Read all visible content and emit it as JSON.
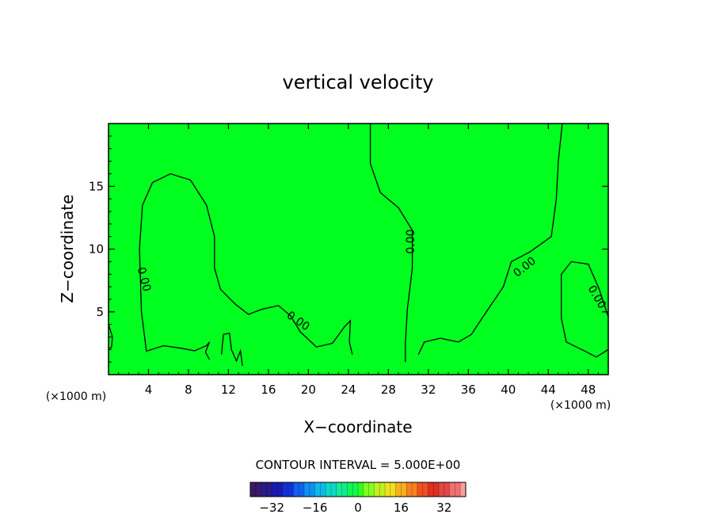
{
  "chart_data": {
    "type": "contour",
    "title": "vertical velocity",
    "xlabel": "X−coordinate",
    "ylabel": "Z−coordinate",
    "x_unit_label": "(×1000 m)",
    "y_unit_label": "(×1000 m)",
    "xlim": [
      0,
      50
    ],
    "ylim": [
      0,
      20
    ],
    "x_ticks": [
      4,
      8,
      12,
      16,
      20,
      24,
      28,
      32,
      36,
      40,
      44,
      48
    ],
    "y_ticks": [
      5,
      10,
      15
    ],
    "field_fill_color": "#00ff1e",
    "contour_interval_text": "CONTOUR INTERVAL = 5.000E+00",
    "contour_level_labels": [
      "0.00",
      "0.00",
      "0.00",
      "0.00",
      "0.00"
    ],
    "contours": [
      {
        "level": 0,
        "points": [
          [
            3.8,
            1.8
          ],
          [
            3.3,
            5.0
          ],
          [
            3.1,
            10.0
          ],
          [
            3.4,
            13.5
          ],
          [
            4.4,
            15.3
          ],
          [
            6.2,
            16.0
          ],
          [
            8.2,
            15.5
          ],
          [
            9.8,
            13.5
          ],
          [
            10.6,
            11.0
          ],
          [
            10.6,
            8.5
          ],
          [
            11.2,
            6.8
          ],
          [
            12.7,
            5.6
          ],
          [
            14.0,
            4.8
          ],
          [
            15.3,
            5.2
          ],
          [
            17.0,
            5.5
          ],
          [
            18.2,
            4.7
          ],
          [
            19.2,
            3.4
          ],
          [
            20.8,
            2.2
          ],
          [
            22.4,
            2.5
          ],
          [
            23.6,
            3.8
          ],
          [
            24.2,
            4.3
          ],
          [
            24.1,
            2.6
          ],
          [
            24.4,
            1.6
          ]
        ]
      },
      {
        "level": 0,
        "points": [
          [
            26.2,
            20.0
          ],
          [
            26.2,
            16.8
          ],
          [
            27.2,
            14.5
          ],
          [
            29.0,
            13.3
          ],
          [
            30.4,
            11.5
          ],
          [
            30.4,
            8.5
          ],
          [
            29.9,
            5.2
          ],
          [
            29.7,
            2.5
          ],
          [
            29.7,
            1.0
          ]
        ]
      },
      {
        "level": 0,
        "points": [
          [
            45.4,
            20.0
          ],
          [
            45.0,
            17.0
          ],
          [
            44.8,
            14.0
          ],
          [
            44.3,
            11.0
          ],
          [
            42.2,
            9.8
          ],
          [
            40.3,
            9.0
          ],
          [
            39.5,
            7.0
          ],
          [
            37.8,
            5.0
          ],
          [
            36.3,
            3.2
          ],
          [
            35.0,
            2.6
          ],
          [
            33.2,
            2.9
          ],
          [
            31.6,
            2.6
          ],
          [
            31.0,
            1.6
          ]
        ]
      },
      {
        "level": 0,
        "points": [
          [
            50.0,
            4.6
          ],
          [
            49.1,
            6.8
          ],
          [
            48.0,
            8.8
          ],
          [
            46.3,
            9.0
          ],
          [
            45.3,
            8.0
          ],
          [
            45.3,
            4.5
          ],
          [
            45.8,
            2.6
          ],
          [
            47.6,
            1.9
          ],
          [
            48.8,
            1.4
          ],
          [
            50.0,
            2.0
          ]
        ]
      },
      {
        "level": 0,
        "points": [
          [
            0.0,
            4.0
          ],
          [
            0.4,
            3.0
          ],
          [
            0.3,
            2.2
          ],
          [
            0.0,
            2.0
          ]
        ]
      },
      {
        "level": 0,
        "points": [
          [
            3.9,
            1.9
          ],
          [
            5.5,
            2.3
          ],
          [
            7.3,
            2.1
          ],
          [
            8.6,
            1.9
          ],
          [
            9.8,
            2.3
          ],
          [
            10.1,
            2.6
          ],
          [
            9.7,
            1.8
          ],
          [
            10.1,
            1.2
          ]
        ]
      },
      {
        "level": 0,
        "points": [
          [
            11.3,
            1.6
          ],
          [
            11.5,
            3.2
          ],
          [
            12.1,
            3.3
          ],
          [
            12.3,
            2.0
          ],
          [
            12.8,
            1.1
          ],
          [
            13.2,
            1.9
          ],
          [
            13.4,
            0.7
          ]
        ]
      }
    ],
    "colorbar": {
      "tick_labels": [
        "−32",
        "−16",
        "0",
        "16",
        "32"
      ],
      "tick_values": [
        -32,
        -16,
        0,
        16,
        32
      ],
      "range": [
        -40,
        40
      ],
      "colors": [
        "#3a1a66",
        "#2a1a8a",
        "#1a1ab0",
        "#1230d8",
        "#1060ee",
        "#1090f0",
        "#10b8e8",
        "#10d8c8",
        "#10ec90",
        "#10f850",
        "#30ff20",
        "#80ff20",
        "#c0f020",
        "#f0e020",
        "#f8b020",
        "#f88020",
        "#f05020",
        "#e03020",
        "#e04848",
        "#f07070",
        "#f8a0a0"
      ]
    }
  }
}
